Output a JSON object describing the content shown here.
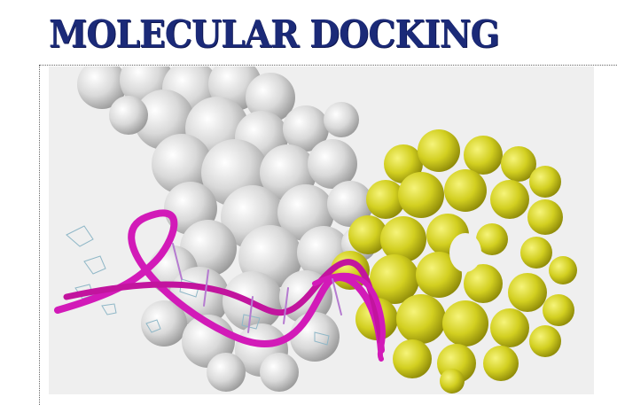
{
  "title": "MOLECULAR DOCKING",
  "figure": {
    "protein_surface_color": "#cfcfcf",
    "ligand_surface_color": "#d8d628",
    "dna_backbone_color": "#d21ab8",
    "background_color": "#efefef"
  }
}
